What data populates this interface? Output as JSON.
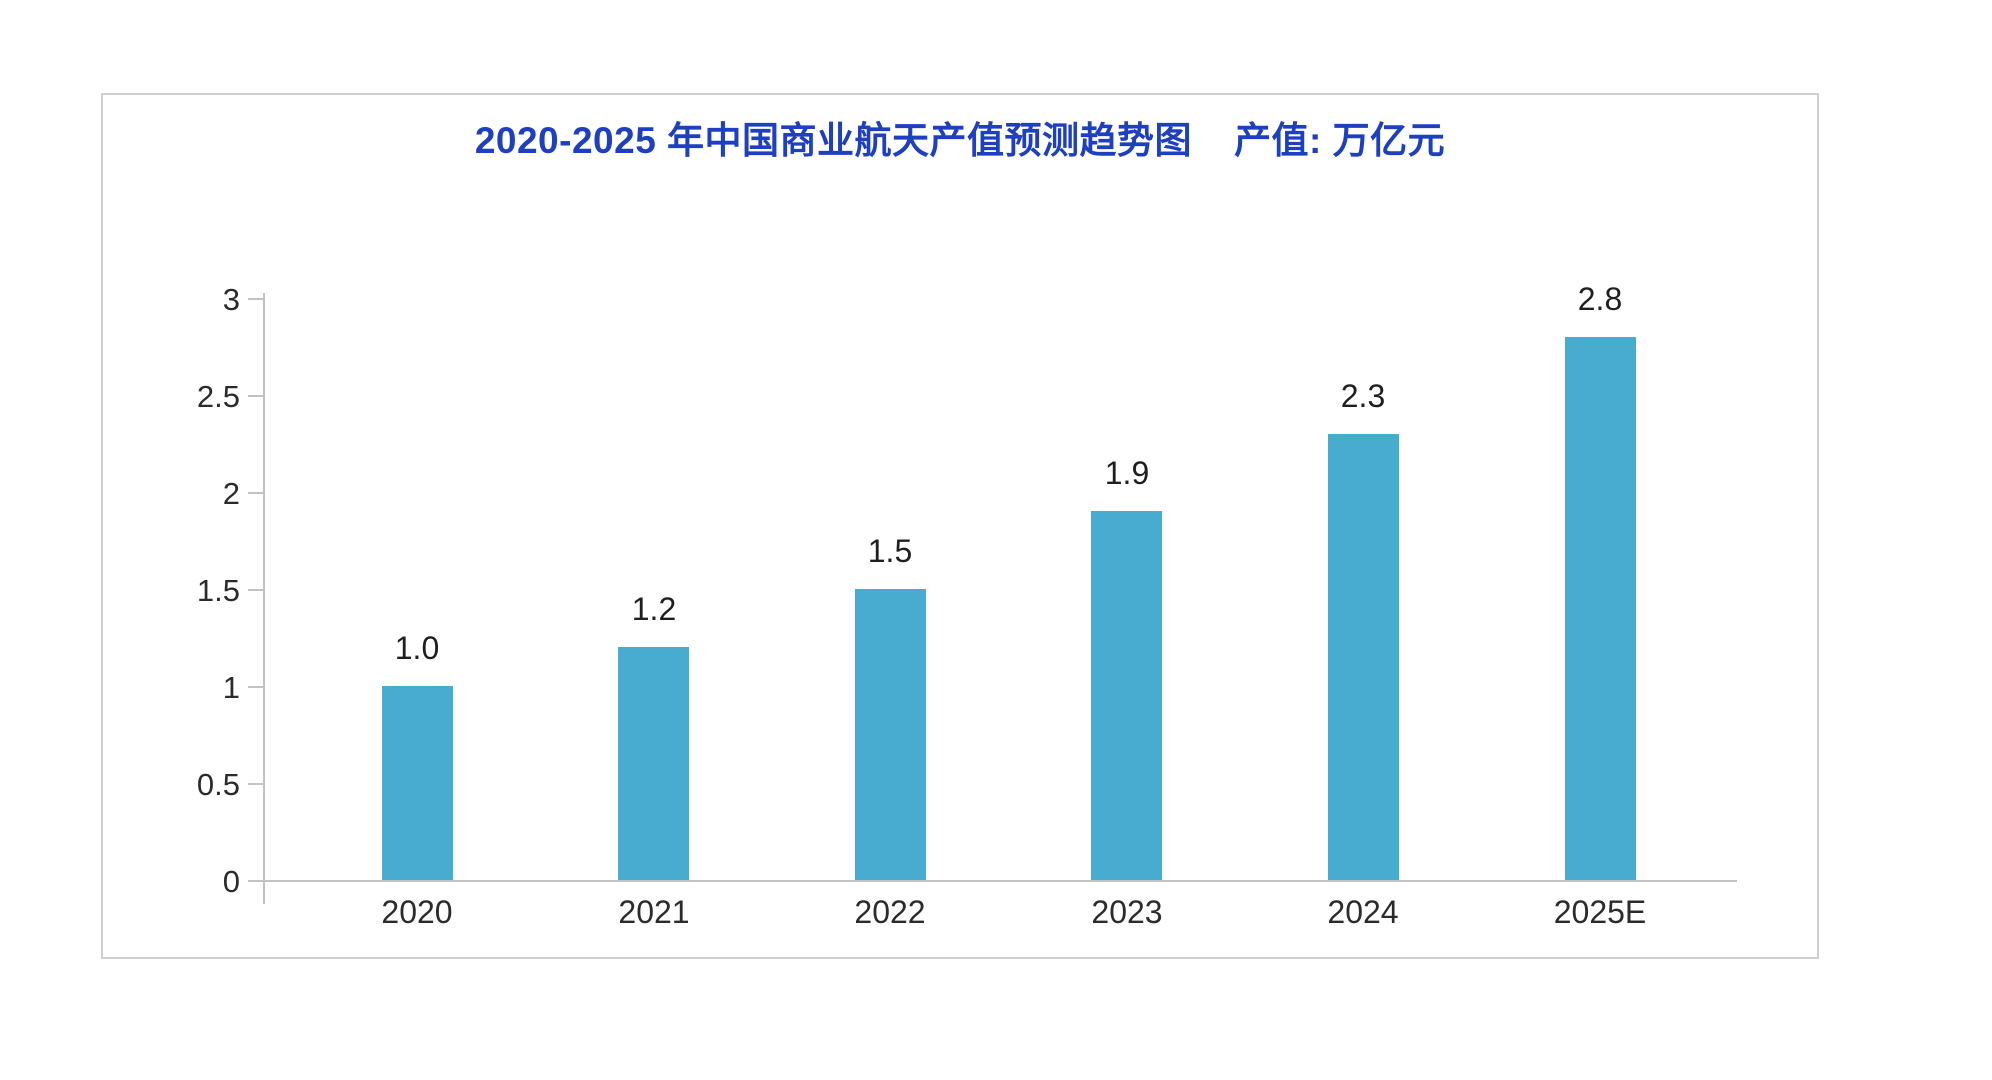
{
  "page": {
    "background_color": "#ffffff",
    "panel_border_color": "#cfcfcf"
  },
  "title": {
    "main": "2020-2025 年中国商业航天产值预测趋势图",
    "unit": "产值: 万亿元",
    "color": "#1e3fbf"
  },
  "chart_data": {
    "type": "bar",
    "title": "2020-2025 年中国商业航天产值预测趋势图",
    "subtitle_unit": "产值: 万亿元",
    "categories": [
      "2020",
      "2021",
      "2022",
      "2023",
      "2024",
      "2025E"
    ],
    "values": [
      1.0,
      1.2,
      1.5,
      1.9,
      2.3,
      2.8
    ],
    "value_labels": [
      "1.0",
      "1.2",
      "1.5",
      "1.9",
      "2.3",
      "2.8"
    ],
    "yticks": [
      0,
      0.5,
      1,
      1.5,
      2,
      2.5,
      3
    ],
    "ytick_labels": [
      "0",
      "0.5",
      "1",
      "1.5",
      "2",
      "2.5",
      "3"
    ],
    "ylim": [
      0,
      3
    ],
    "xlabel": "",
    "ylabel": "",
    "grid": false,
    "legend_position": "none",
    "bar_color": "#47accf",
    "axis_color": "#c2c2c2",
    "label_color": "#2b2b2b"
  }
}
